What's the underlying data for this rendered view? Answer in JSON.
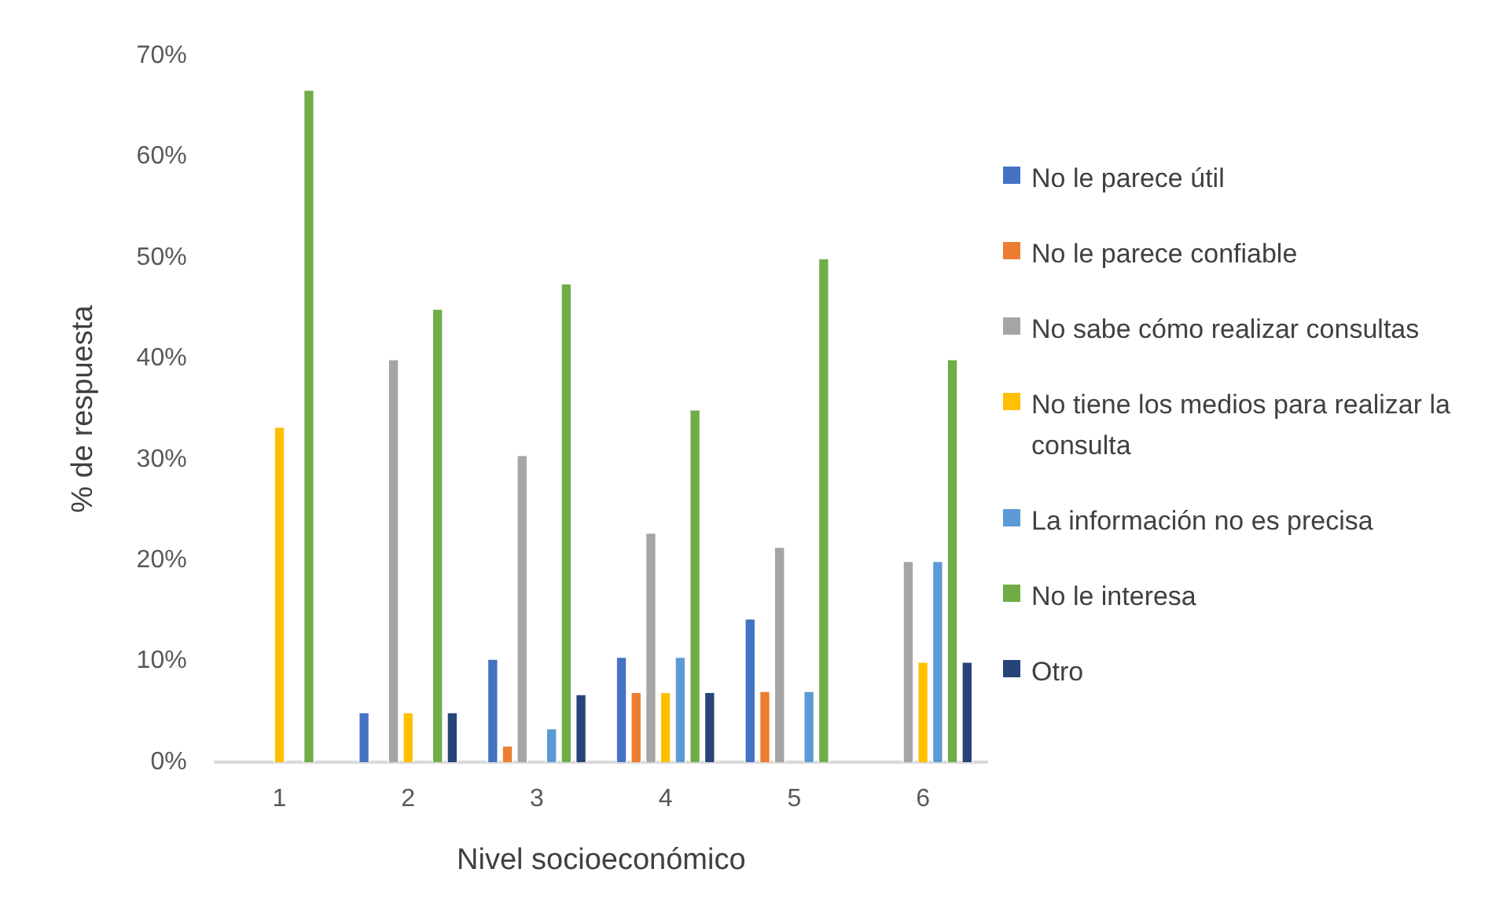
{
  "chart_data": {
    "type": "bar",
    "xlabel": "Nivel socioeconómico",
    "ylabel": "% de respuesta",
    "categories": [
      "1",
      "2",
      "3",
      "4",
      "5",
      "6"
    ],
    "series": [
      {
        "name": "No le parece útil",
        "color": "#4472c4",
        "values": [
          0,
          5,
          10.3,
          10.5,
          14.3,
          0
        ]
      },
      {
        "name": "No le parece confiable",
        "color": "#ed7d31",
        "values": [
          0,
          0,
          1.7,
          7,
          7.1,
          0
        ]
      },
      {
        "name": "No sabe cómo realizar consultas",
        "color": "#a5a5a5",
        "values": [
          0,
          40,
          30.5,
          22.8,
          21.4,
          20
        ]
      },
      {
        "name": "No tiene los medios para realizar la consulta",
        "color": "#ffc000",
        "values": [
          33.3,
          5,
          0,
          7,
          0,
          10
        ]
      },
      {
        "name": "La información no es precisa",
        "color": "#5b9bd5",
        "values": [
          0,
          0,
          3.4,
          10.5,
          7.1,
          20
        ]
      },
      {
        "name": "No le interesa",
        "color": "#70ad47",
        "values": [
          66.7,
          45,
          47.5,
          35,
          50,
          40
        ]
      },
      {
        "name": "Otro",
        "color": "#264478",
        "values": [
          0,
          5,
          6.8,
          7,
          0,
          10
        ]
      }
    ],
    "ylim": [
      0,
      70
    ],
    "yticks": [
      {
        "value": 0,
        "label": "0%"
      },
      {
        "value": 10,
        "label": "10%"
      },
      {
        "value": 20,
        "label": "20%"
      },
      {
        "value": 30,
        "label": "30%"
      },
      {
        "value": 40,
        "label": "40%"
      },
      {
        "value": 50,
        "label": "50%"
      },
      {
        "value": 60,
        "label": "60%"
      },
      {
        "value": 70,
        "label": "70%"
      }
    ],
    "grid": false,
    "legend": "right"
  }
}
